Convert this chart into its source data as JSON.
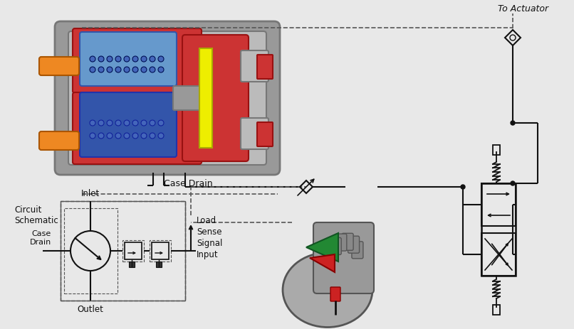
{
  "bg_color": "#e8e8e8",
  "title_text": "To Actuator",
  "case_drain_label": "Case Drain",
  "circuit_schematic_label": "Circuit\nSchematic",
  "inlet_label": "Inlet",
  "outlet_label": "Outlet",
  "case_drain_label2": "Case\nDrain",
  "load_sense_label": "Load\nSense\nSignal\nInput",
  "pump_gray": "#999999",
  "pump_gray_dark": "#777777",
  "pump_gray_light": "#bbbbbb",
  "pump_red": "#cc3333",
  "pump_blue_light": "#6699cc",
  "pump_blue_dark": "#3355aa",
  "pump_yellow": "#eeee00",
  "pump_orange": "#ee8822",
  "motor_gray": "#888888",
  "motor_green": "#228833",
  "motor_red": "#cc2222",
  "line_color": "#111111",
  "dashed_color": "#555555",
  "white": "#ffffff"
}
